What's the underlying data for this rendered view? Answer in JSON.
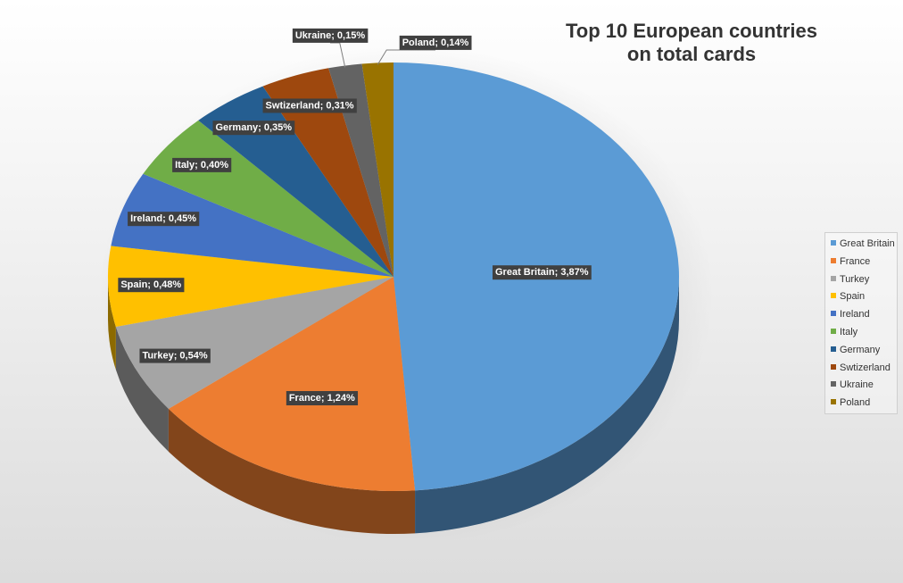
{
  "chart_data": {
    "type": "pie",
    "title_lines": [
      "Top 10 European countries",
      "on total cards"
    ],
    "categories": [
      "Great Britain",
      "France",
      "Turkey",
      "Spain",
      "Ireland",
      "Italy",
      "Germany",
      "Swtizerland",
      "Ukraine",
      "Poland"
    ],
    "values": [
      3.87,
      1.24,
      0.54,
      0.48,
      0.45,
      0.4,
      0.35,
      0.31,
      0.15,
      0.14
    ],
    "data_labels": [
      "Great Britain; 3,87%",
      "France; 1,24%",
      "Turkey; 0,54%",
      "Spain; 0,48%",
      "Ireland; 0,45%",
      "Italy; 0,40%",
      "Germany; 0,35%",
      "Swtizerland; 0,31%",
      "Ukraine; 0,15%",
      "Poland; 0,14%"
    ],
    "colors": [
      "#5B9BD5",
      "#ED7D31",
      "#A5A5A5",
      "#FFC000",
      "#4472C4",
      "#70AD47",
      "#255E91",
      "#9E480E",
      "#636363",
      "#997300"
    ],
    "legend_position": "right",
    "style": "3d"
  }
}
